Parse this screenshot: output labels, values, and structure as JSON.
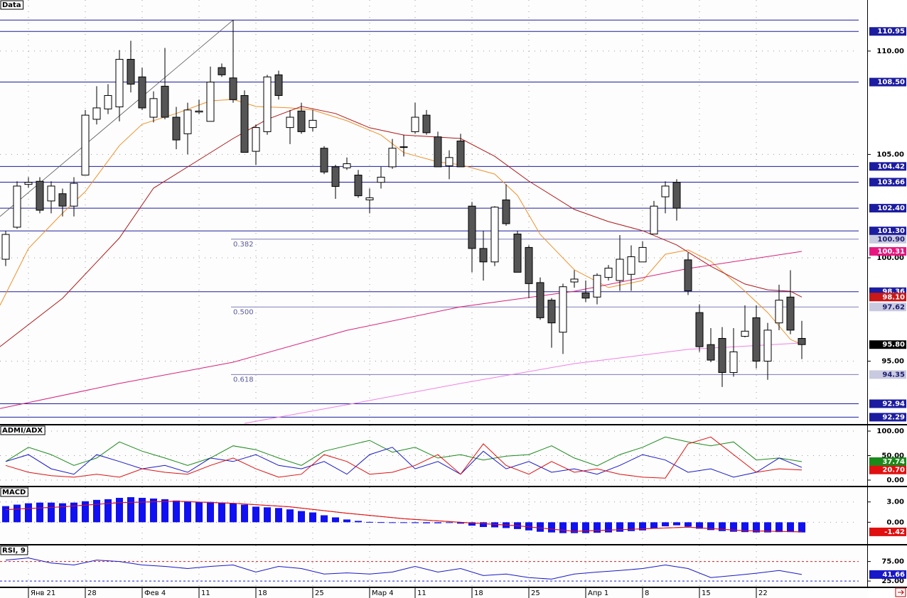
{
  "chart_data": [
    {
      "type": "candlestick",
      "title": "Data",
      "grid": true,
      "xlim": [
        -0.5,
        75
      ],
      "xticks": [
        {
          "value": 2,
          "label": "Янв 21"
        },
        {
          "value": 7,
          "label": "28"
        },
        {
          "value": 12,
          "label": "Фев 4"
        },
        {
          "value": 17,
          "label": "11"
        },
        {
          "value": 22,
          "label": "18"
        },
        {
          "value": 27,
          "label": "25"
        },
        {
          "value": 32,
          "label": "Мар 4"
        },
        {
          "value": 36,
          "label": "11"
        },
        {
          "value": 41,
          "label": "18"
        },
        {
          "value": 46,
          "label": "25"
        },
        {
          "value": 51,
          "label": "Апр 1"
        },
        {
          "value": 56,
          "label": "8"
        },
        {
          "value": 61,
          "label": "15"
        },
        {
          "value": 66,
          "label": "22"
        }
      ],
      "ylim": [
        91.96,
        112.47
      ],
      "yticks": [
        {
          "value": 95,
          "label": "95.00"
        },
        {
          "value": 100,
          "label": "100.00"
        },
        {
          "value": 105,
          "label": "105.00"
        },
        {
          "value": 110,
          "label": "110.00"
        }
      ],
      "up_color": "#ffffff",
      "down_color": "#555555",
      "open": [
        99.93,
        101.48,
        103.55,
        103.7,
        102.75,
        103.1,
        102.5,
        104.0,
        106.7,
        107.2,
        107.3,
        109.6,
        108.75,
        106.8,
        108.3,
        106.8,
        106.0,
        107.05,
        106.6,
        109.2,
        108.7,
        107.85,
        105.15,
        106.1,
        108.85,
        106.3,
        107.1,
        106.3,
        105.3,
        104.4,
        104.35,
        104.0,
        102.8,
        103.65,
        104.4,
        105.35,
        106.1,
        106.9,
        105.85,
        104.45,
        105.65,
        102.5,
        100.45,
        99.8,
        102.8,
        101.15,
        100.5,
        98.8,
        97.95,
        96.4,
        98.83,
        98.3,
        98.1,
        99.05,
        98.9,
        99.2,
        99.8,
        101.15,
        102.95,
        103.65,
        99.9,
        97.35,
        95.8,
        96.1,
        94.45,
        96.2,
        97.1,
        95.0,
        96.85,
        98.1,
        96.1
      ],
      "high": [
        101.3,
        103.7,
        103.9,
        103.9,
        103.7,
        103.35,
        103.9,
        107.15,
        108.3,
        108.4,
        110.05,
        110.5,
        109.2,
        108.05,
        110.15,
        107.3,
        107.5,
        107.65,
        109.25,
        109.4,
        111.5,
        108.1,
        106.45,
        108.85,
        109.05,
        107.15,
        107.5,
        107.15,
        105.4,
        104.5,
        104.85,
        104.25,
        103.35,
        104.4,
        105.75,
        105.95,
        107.5,
        107.15,
        106.1,
        105.2,
        106.0,
        102.7,
        101.3,
        102.5,
        103.55,
        101.3,
        100.6,
        99.05,
        98.05,
        98.75,
        99.4,
        98.9,
        99.25,
        99.65,
        101.1,
        100.6,
        100.8,
        102.75,
        103.7,
        103.8,
        100.25,
        97.75,
        96.6,
        96.65,
        96.6,
        97.7,
        97.7,
        96.85,
        98.7,
        99.4,
        96.95
      ],
      "low": [
        99.6,
        101.4,
        103.4,
        102.15,
        102.15,
        102.0,
        102.0,
        104.0,
        106.45,
        106.95,
        106.6,
        108.0,
        107.15,
        106.55,
        106.7,
        105.25,
        105.0,
        106.95,
        106.6,
        108.75,
        107.5,
        105.1,
        104.5,
        105.95,
        107.65,
        105.5,
        106.0,
        106.1,
        104.05,
        102.85,
        104.25,
        102.9,
        102.15,
        103.35,
        104.3,
        104.9,
        106.0,
        105.95,
        104.4,
        103.8,
        104.4,
        99.3,
        98.9,
        99.6,
        101.55,
        99.3,
        98.05,
        97.0,
        95.65,
        95.35,
        98.55,
        97.85,
        97.75,
        98.9,
        98.4,
        98.4,
        99.8,
        101.15,
        102.15,
        101.8,
        98.2,
        95.45,
        94.95,
        93.75,
        94.25,
        96.15,
        94.65,
        94.1,
        96.5,
        96.3,
        95.1
      ],
      "close": [
        101.13,
        103.47,
        103.65,
        102.3,
        103.47,
        102.5,
        103.6,
        106.9,
        107.25,
        107.85,
        109.6,
        108.4,
        107.25,
        107.7,
        106.8,
        105.7,
        107.15,
        107.1,
        108.5,
        108.85,
        107.65,
        105.1,
        106.3,
        108.75,
        107.85,
        106.8,
        106.1,
        106.65,
        104.15,
        103.45,
        104.55,
        103.0,
        102.9,
        103.9,
        105.3,
        105.37,
        106.8,
        106.05,
        104.4,
        104.85,
        104.4,
        100.45,
        99.8,
        102.45,
        101.65,
        99.3,
        98.75,
        97.1,
        96.85,
        98.6,
        98.97,
        98.05,
        99.15,
        99.5,
        99.93,
        100.05,
        100.5,
        102.5,
        103.47,
        102.4,
        98.4,
        95.7,
        95.05,
        94.45,
        95.45,
        96.45,
        95.0,
        96.5,
        97.95,
        96.5,
        95.8
      ],
      "series": [
        {
          "color": "#f0902a",
          "x": [
            -0.5,
            2,
            5,
            7,
            10,
            12,
            15,
            18,
            20,
            22,
            25,
            27,
            30,
            33,
            35,
            38,
            40,
            43,
            45,
            47,
            50,
            53,
            56,
            58,
            60,
            62,
            65,
            67,
            69,
            70
          ],
          "values": [
            97.7,
            100.45,
            102.16,
            103.2,
            105.43,
            106.46,
            106.98,
            107.59,
            107.66,
            107.32,
            107.25,
            107.15,
            106.63,
            105.94,
            105.09,
            104.64,
            104.5,
            104.05,
            103.02,
            101.13,
            99.42,
            98.56,
            98.9,
            100.17,
            100.38,
            99.83,
            98.38,
            97.35,
            96.05,
            95.81
          ]
        },
        {
          "color": "#b01818",
          "x": [
            -0.5,
            5,
            10,
            13,
            17,
            20,
            23,
            26,
            29,
            32,
            35,
            40,
            43,
            46,
            50,
            53,
            56,
            59,
            62,
            65,
            67,
            69,
            70
          ],
          "values": [
            95.7,
            98.04,
            100.96,
            103.37,
            104.74,
            105.77,
            106.7,
            107.32,
            106.98,
            106.29,
            105.94,
            105.77,
            104.91,
            103.71,
            102.34,
            101.75,
            101.31,
            100.62,
            99.59,
            98.73,
            98.45,
            98.38,
            98.1
          ]
        },
        {
          "color": "#d8207a",
          "x": [
            -0.5,
            10,
            20,
            30,
            40,
            50,
            60,
            70
          ],
          "values": [
            92.71,
            93.92,
            94.95,
            96.49,
            97.63,
            98.38,
            99.48,
            100.31
          ]
        },
        {
          "color": "#f080e8",
          "x": [
            21,
            30,
            40,
            50,
            60,
            70
          ],
          "values": [
            91.99,
            92.89,
            93.92,
            94.88,
            95.57,
            95.88
          ]
        }
      ],
      "level_color": "#1c1ca0",
      "levels": [
        {
          "value": 110.95,
          "label": "110.95"
        },
        {
          "value": 108.5,
          "label": "108.50"
        },
        {
          "value": 104.42,
          "label": "104.42"
        },
        {
          "value": 103.66,
          "label": "103.66"
        },
        {
          "value": 102.4,
          "label": "102.40"
        },
        {
          "value": 101.3,
          "label": "101.30"
        },
        {
          "value": 98.36,
          "label": "98.36"
        },
        {
          "value": 92.94,
          "label": "92.94"
        },
        {
          "value": 92.29,
          "label": "92.29"
        }
      ],
      "extra_levels": [
        111.5
      ],
      "trend_line": {
        "x": [
          -0.5,
          20
        ],
        "values": [
          102.0,
          111.5
        ]
      },
      "fib_color": "#7c7cb8",
      "fib_levels": [
        {
          "ratio": {
            "value": 0.382,
            "label": "0.382"
          },
          "price": {
            "value": 100.9,
            "label": "100.90"
          }
        },
        {
          "ratio": {
            "value": 0.5,
            "label": "0.500"
          },
          "price": {
            "value": 97.62,
            "label": "97.62"
          }
        },
        {
          "ratio": {
            "value": 0.618,
            "label": "0.618"
          },
          "price": {
            "value": 94.35,
            "label": "94.35"
          }
        }
      ],
      "last_values": [
        {
          "value": 100.31,
          "label": "100.31",
          "color": "#e8177f"
        },
        {
          "value": 98.1,
          "label": "98.10",
          "color": "#c81818"
        },
        {
          "value": 95.8,
          "label": "95.80",
          "color": "#000000"
        }
      ]
    },
    {
      "type": "line",
      "title": "ADMI/ADX",
      "grid": true,
      "ylim": [
        -11.6,
        111.6
      ],
      "yticks": [
        {
          "value": 0,
          "label": "0.00"
        },
        {
          "value": 50,
          "label": "50.00"
        },
        {
          "value": 100,
          "label": "100.00"
        }
      ],
      "x": [
        0,
        2,
        4,
        6,
        8,
        10,
        12,
        14,
        16,
        18,
        20,
        22,
        24,
        26,
        28,
        30,
        32,
        34,
        36,
        38,
        40,
        42,
        44,
        46,
        48,
        50,
        52,
        54,
        56,
        58,
        60,
        62,
        64,
        66,
        68,
        70
      ],
      "series": [
        {
          "color": "#1a8a1a",
          "values": [
            38,
            67,
            52,
            30,
            45,
            78,
            59,
            45,
            30,
            45,
            70,
            62,
            45,
            30,
            59,
            70,
            81,
            57,
            67,
            45,
            52,
            41,
            49,
            52,
            70,
            45,
            29,
            52,
            67,
            88,
            78,
            70,
            78,
            41,
            45,
            37.74
          ]
        },
        {
          "color": "#1818c8",
          "values": [
            38,
            52,
            23,
            12,
            52,
            38,
            23,
            30,
            16,
            45,
            38,
            52,
            30,
            23,
            38,
            12,
            52,
            67,
            23,
            38,
            12,
            59,
            23,
            38,
            16,
            23,
            12,
            30,
            52,
            41,
            16,
            23,
            6,
            16,
            45,
            26
          ]
        },
        {
          "color": "#e01010",
          "values": [
            30,
            16,
            9,
            6,
            12,
            6,
            23,
            16,
            12,
            30,
            45,
            23,
            6,
            12,
            52,
            38,
            12,
            16,
            30,
            52,
            12,
            74,
            30,
            12,
            38,
            16,
            23,
            12,
            6,
            4,
            74,
            88,
            52,
            16,
            23,
            20.7
          ]
        }
      ],
      "last_values": [
        {
          "value": 37.74,
          "label": "37.74",
          "color": "#1a8a1a"
        },
        {
          "value": 20.7,
          "label": "20.70",
          "color": "#e01010"
        }
      ]
    },
    {
      "type": "bar",
      "title": "MACD",
      "grid": true,
      "color": "#1010f0",
      "ylim": [
        -3.21,
        5.17
      ],
      "yticks": [
        {
          "value": 0,
          "label": "0.00"
        },
        {
          "value": 3,
          "label": "3.00"
        }
      ],
      "values": [
        2.38,
        2.6,
        2.8,
        2.9,
        2.9,
        2.8,
        2.9,
        3.1,
        3.3,
        3.4,
        3.6,
        3.7,
        3.6,
        3.5,
        3.4,
        3.2,
        3.1,
        3.0,
        3.0,
        2.9,
        2.8,
        2.6,
        2.3,
        2.2,
        2.1,
        1.9,
        1.65,
        1.45,
        1.03,
        0.72,
        0.41,
        0.2,
        0.05,
        0.02,
        -0.05,
        -0.1,
        -0.12,
        -0.15,
        -0.15,
        -0.1,
        -0.2,
        -0.5,
        -0.7,
        -0.75,
        -0.85,
        -1.0,
        -1.2,
        -1.4,
        -1.5,
        -1.6,
        -1.6,
        -1.6,
        -1.55,
        -1.5,
        -1.4,
        -1.3,
        -1.2,
        -0.9,
        -0.6,
        -0.45,
        -0.65,
        -0.95,
        -1.15,
        -1.3,
        -1.4,
        -1.45,
        -1.5,
        -1.5,
        -1.45,
        -1.45,
        -1.5
      ],
      "series": [
        {
          "color": "#e01010",
          "x": [
            0,
            5,
            10,
            15,
            20,
            25,
            30,
            35,
            40,
            45,
            50,
            55,
            60,
            65,
            70
          ],
          "values": [
            1.86,
            2.28,
            2.9,
            3.1,
            2.8,
            2.28,
            1.34,
            0.52,
            0,
            -0.52,
            -1.34,
            -1.03,
            -0.72,
            -1.24,
            -1.42
          ]
        }
      ],
      "last_values": [
        {
          "value": -1.42,
          "label": "-1.42",
          "color": "#e01010"
        }
      ]
    },
    {
      "type": "line",
      "title": "RSI, 9",
      "grid": true,
      "dashed_ticks": true,
      "ylim": [
        10.7,
        116
      ],
      "yticks": [
        {
          "value": 25,
          "label": "25.00"
        },
        {
          "value": 75,
          "label": "75.00"
        }
      ],
      "x": [
        0,
        2,
        4,
        6,
        8,
        10,
        12,
        14,
        16,
        18,
        20,
        22,
        24,
        26,
        28,
        30,
        32,
        34,
        36,
        38,
        40,
        42,
        44,
        46,
        48,
        50,
        52,
        54,
        56,
        58,
        60,
        62,
        64,
        66,
        68,
        70
      ],
      "series": [
        {
          "color": "#1818c8",
          "values": [
            78.6,
            84,
            71,
            66,
            78.6,
            75,
            66,
            62.5,
            57,
            62.5,
            66,
            48,
            62.5,
            57,
            43,
            46,
            43,
            48,
            62.5,
            48,
            57,
            39,
            43,
            34,
            30,
            43,
            48,
            52,
            57,
            66,
            57,
            34,
            39,
            45,
            52,
            41.66
          ]
        }
      ],
      "last_values": [
        {
          "value": 41.66,
          "label": "41.66",
          "color": "#1818c8"
        }
      ]
    }
  ]
}
